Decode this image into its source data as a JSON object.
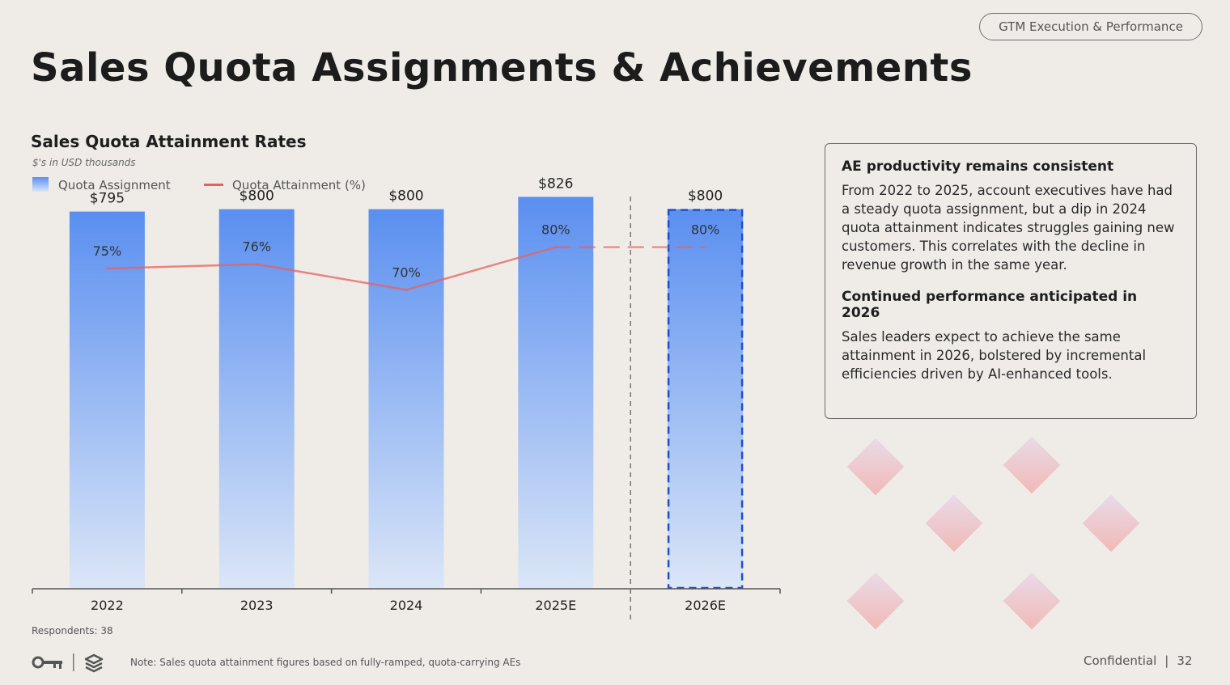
{
  "header": {
    "tag": "GTM Execution & Performance",
    "title": "Sales Quota Assignments & Achievements"
  },
  "chart_header": {
    "title": "Sales Quota Attainment Rates",
    "subtitle": "$'s in USD thousands"
  },
  "legend": {
    "bar_label": "Quota Assignment",
    "line_label": "Quota Attainment (%)"
  },
  "chart_data": {
    "type": "bar",
    "title": "Sales Quota Attainment Rates",
    "subtitle": "$'s in USD thousands",
    "categories": [
      "2022",
      "2023",
      "2024",
      "2025E",
      "2026E"
    ],
    "series": [
      {
        "name": "Quota Assignment",
        "type": "bar",
        "values": [
          795,
          800,
          800,
          826,
          800
        ],
        "labels": [
          "$795",
          "$800",
          "$800",
          "$826",
          "$800"
        ],
        "projected": [
          false,
          false,
          false,
          false,
          true
        ]
      },
      {
        "name": "Quota Attainment (%)",
        "type": "line",
        "values": [
          75,
          76,
          70,
          80,
          80
        ],
        "labels": [
          "75%",
          "76%",
          "70%",
          "80%",
          "80%"
        ],
        "projected_segments": [
          false,
          false,
          false,
          true
        ]
      }
    ],
    "bar_ylim": [
      0,
      900
    ],
    "line_ylim": [
      0,
      100
    ],
    "xlabel": "",
    "ylabel": "",
    "grid": false,
    "legend_position": "top-left",
    "projection_divider_after": "2025E"
  },
  "colors": {
    "bar_top": "#5a8ff0",
    "bar_bottom": "#dbe6f7",
    "line": "#e8605e",
    "projected_border": "#1f4fc9"
  },
  "footnotes": {
    "respondents": "Respondents: 38",
    "note": "Note: Sales quota attainment figures based on fully-ramped, quota-carrying AEs"
  },
  "footer": {
    "confidential": "Confidential",
    "separator": "|",
    "page_number": "32"
  },
  "icons": [
    "key-logo-icon",
    "s-logo-icon"
  ],
  "insights": [
    {
      "heading": "AE productivity remains consistent",
      "body": "From 2022 to 2025, account executives have had a steady quota assignment, but a dip in 2024 quota attainment indicates struggles gaining new customers. This correlates with the decline in revenue growth in the same year."
    },
    {
      "heading": "Continued performance anticipated in 2026",
      "body": "Sales leaders expect to achieve the same attainment in 2026, bolstered by incremental efficiencies driven by AI-enhanced tools."
    }
  ]
}
